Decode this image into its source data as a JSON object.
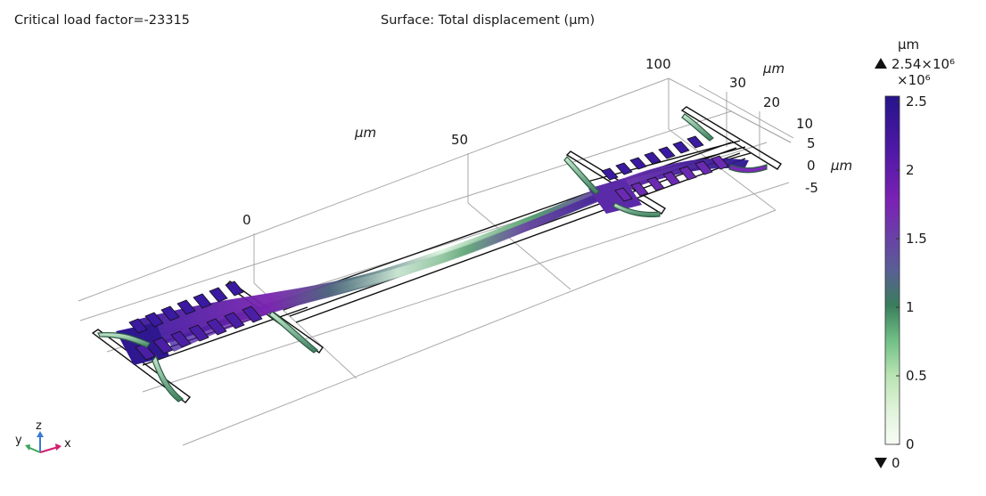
{
  "header": {
    "left_title": "Critical load factor=-23315",
    "center_title": "Surface: Total displacement (µm)"
  },
  "chart_data": {
    "type": "heatmap",
    "title": "Surface: Total displacement (µm)",
    "subtitle": "Critical load factor=-23315",
    "axes3d": {
      "x": {
        "label": "µm",
        "ticks": [
          "0",
          "50",
          "100"
        ]
      },
      "y": {
        "label": "µm",
        "ticks": [
          "20",
          "30"
        ]
      },
      "z": {
        "label": "µm",
        "ticks": [
          "-5",
          "0",
          "5",
          "10"
        ]
      }
    },
    "colorbar": {
      "unit": "µm",
      "range": [
        0,
        2.54
      ],
      "scale_label": "×10⁶",
      "max_label": "2.54×10⁶",
      "min_label": "0",
      "ticks": [
        "0",
        "0.5",
        "1",
        "1.5",
        "2",
        "2.5"
      ],
      "tick_values": [
        0,
        0.5,
        1,
        1.5,
        2,
        2.5
      ],
      "colors": [
        "#f7fcf5",
        "#c7e9c0",
        "#74c476",
        "#3a7d5c",
        "#5a5f95",
        "#7b2ab8",
        "#5b1ba8",
        "#2a148a"
      ]
    },
    "triad": {
      "x": "x",
      "y": "y",
      "z": "z"
    }
  }
}
